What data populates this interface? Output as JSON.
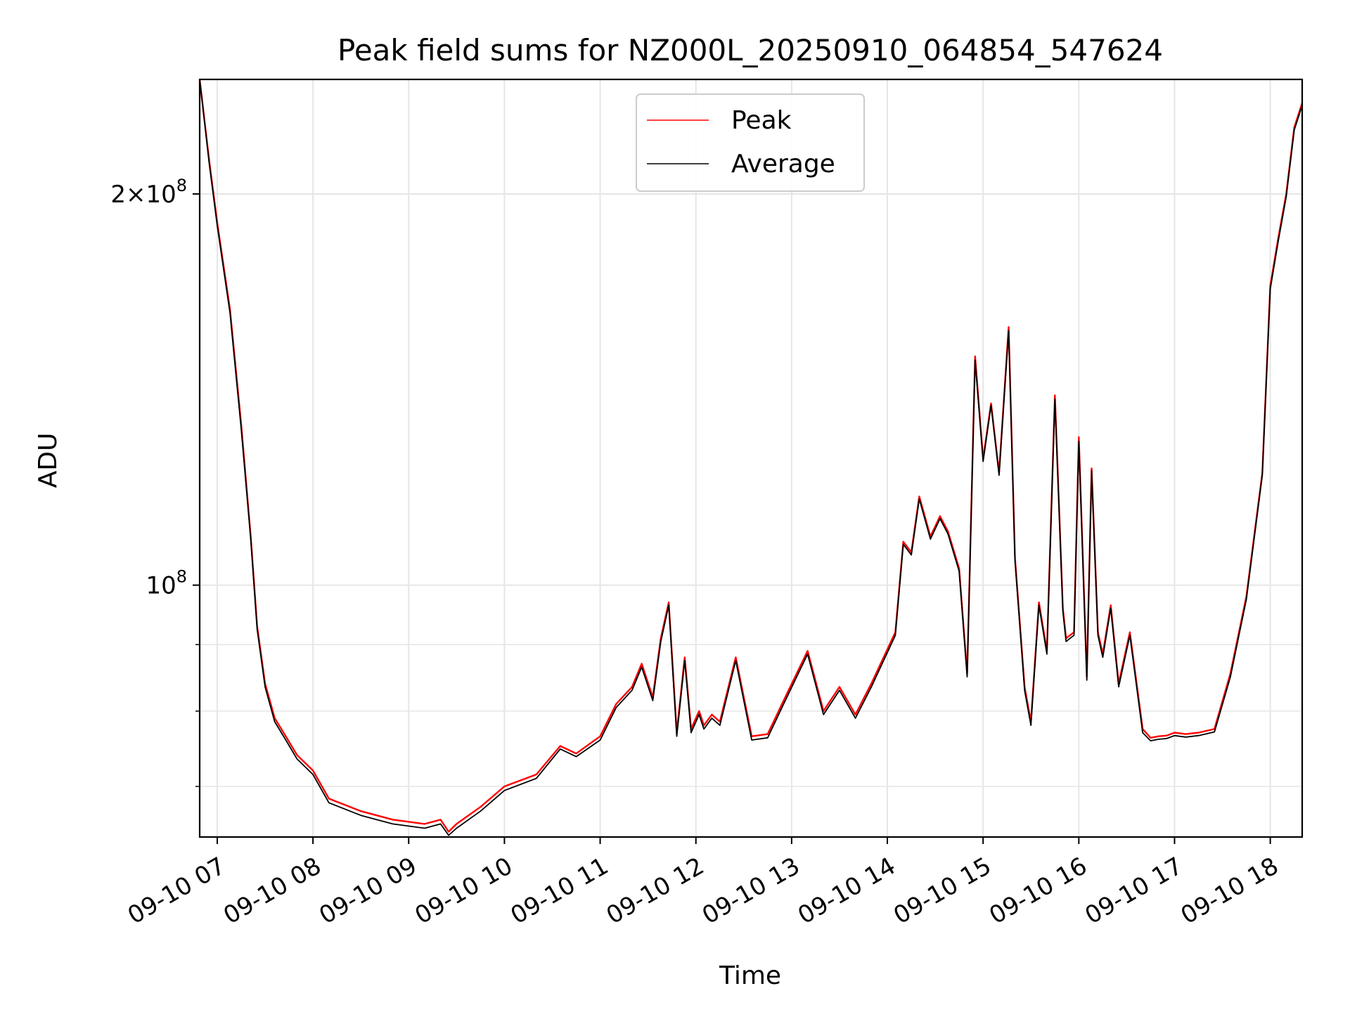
{
  "chart_data": {
    "type": "line",
    "title": "Peak field sums for NZ000L_20250910_064854_547624",
    "xlabel": "Time",
    "ylabel": "ADU",
    "yscale": "log",
    "ylim": [
      64000000,
      245000000
    ],
    "y_ticks": [
      {
        "value": 100000000,
        "mantissa": "",
        "exponent": "8"
      },
      {
        "value": 200000000,
        "mantissa": "2",
        "exponent": "8"
      }
    ],
    "y_minor_ticks": [
      70000000,
      80000000,
      90000000
    ],
    "xlim": [
      "2025-09-10 06:49",
      "2025-09-10 18:20"
    ],
    "x_ticks": [
      "09-10 07",
      "09-10 08",
      "09-10 09",
      "09-10 10",
      "09-10 11",
      "09-10 12",
      "09-10 13",
      "09-10 14",
      "09-10 15",
      "09-10 16",
      "09-10 17",
      "09-10 18"
    ],
    "x_tick_times": [
      "2025-09-10 07:00",
      "2025-09-10 08:00",
      "2025-09-10 09:00",
      "2025-09-10 10:00",
      "2025-09-10 11:00",
      "2025-09-10 12:00",
      "2025-09-10 13:00",
      "2025-09-10 14:00",
      "2025-09-10 15:00",
      "2025-09-10 16:00",
      "2025-09-10 17:00",
      "2025-09-10 18:00"
    ],
    "grid": true,
    "legend_position": "upper center",
    "series": [
      {
        "name": "Peak",
        "color": "#ff0000",
        "x": [
          "2025-09-10 06:49",
          "2025-09-10 06:55",
          "2025-09-10 07:00",
          "2025-09-10 07:08",
          "2025-09-10 07:15",
          "2025-09-10 07:21",
          "2025-09-10 07:25",
          "2025-09-10 07:30",
          "2025-09-10 07:36",
          "2025-09-10 07:43",
          "2025-09-10 07:50",
          "2025-09-10 08:00",
          "2025-09-10 08:10",
          "2025-09-10 08:30",
          "2025-09-10 08:50",
          "2025-09-10 09:10",
          "2025-09-10 09:20",
          "2025-09-10 09:25",
          "2025-09-10 09:30",
          "2025-09-10 09:45",
          "2025-09-10 10:00",
          "2025-09-10 10:20",
          "2025-09-10 10:35",
          "2025-09-10 10:45",
          "2025-09-10 11:00",
          "2025-09-10 11:10",
          "2025-09-10 11:20",
          "2025-09-10 11:26",
          "2025-09-10 11:33",
          "2025-09-10 11:38",
          "2025-09-10 11:43",
          "2025-09-10 11:48",
          "2025-09-10 11:53",
          "2025-09-10 11:57",
          "2025-09-10 12:02",
          "2025-09-10 12:05",
          "2025-09-10 12:10",
          "2025-09-10 12:15",
          "2025-09-10 12:25",
          "2025-09-10 12:35",
          "2025-09-10 12:45",
          "2025-09-10 12:55",
          "2025-09-10 13:10",
          "2025-09-10 13:20",
          "2025-09-10 13:30",
          "2025-09-10 13:40",
          "2025-09-10 13:50",
          "2025-09-10 14:05",
          "2025-09-10 14:10",
          "2025-09-10 14:15",
          "2025-09-10 14:20",
          "2025-09-10 14:27",
          "2025-09-10 14:33",
          "2025-09-10 14:38",
          "2025-09-10 14:45",
          "2025-09-10 14:50",
          "2025-09-10 14:55",
          "2025-09-10 15:00",
          "2025-09-10 15:05",
          "2025-09-10 15:10",
          "2025-09-10 15:16",
          "2025-09-10 15:20",
          "2025-09-10 15:26",
          "2025-09-10 15:30",
          "2025-09-10 15:35",
          "2025-09-10 15:40",
          "2025-09-10 15:45",
          "2025-09-10 15:50",
          "2025-09-10 15:52",
          "2025-09-10 15:57",
          "2025-09-10 16:00",
          "2025-09-10 16:05",
          "2025-09-10 16:08",
          "2025-09-10 16:12",
          "2025-09-10 16:15",
          "2025-09-10 16:20",
          "2025-09-10 16:25",
          "2025-09-10 16:32",
          "2025-09-10 16:40",
          "2025-09-10 16:45",
          "2025-09-10 16:50",
          "2025-09-10 16:55",
          "2025-09-10 17:00",
          "2025-09-10 17:07",
          "2025-09-10 17:15",
          "2025-09-10 17:25",
          "2025-09-10 17:35",
          "2025-09-10 17:45",
          "2025-09-10 17:55",
          "2025-09-10 18:00",
          "2025-09-10 18:05",
          "2025-09-10 18:10",
          "2025-09-10 18:15",
          "2025-09-10 18:20"
        ],
        "values": [
          245000000,
          212000000,
          190000000,
          163000000,
          133000000,
          109000000,
          93000000,
          84000000,
          79000000,
          76500000,
          74000000,
          72000000,
          68500000,
          67000000,
          66000000,
          65500000,
          66000000,
          64600000,
          65500000,
          67500000,
          70000000,
          71500000,
          75200000,
          74200000,
          76500000,
          81000000,
          83500000,
          87000000,
          82000000,
          91000000,
          97000000,
          77000000,
          88000000,
          77500000,
          80000000,
          78000000,
          79500000,
          78500000,
          88000000,
          76500000,
          76800000,
          81500000,
          89000000,
          80000000,
          83500000,
          79500000,
          84000000,
          92000000,
          108000000,
          106000000,
          117000000,
          109000000,
          113000000,
          110000000,
          103000000,
          85500000,
          150000000,
          125000000,
          138000000,
          122000000,
          158000000,
          105000000,
          83500000,
          78500000,
          97000000,
          89000000,
          140000000,
          96000000,
          91000000,
          92000000,
          130000000,
          85000000,
          123000000,
          92000000,
          88500000,
          96500000,
          84000000,
          92000000,
          77500000,
          76300000,
          76500000,
          76600000,
          77000000,
          76800000,
          77000000,
          77500000,
          85500000,
          98000000,
          122000000,
          170000000,
          185000000,
          200000000,
          225000000,
          235000000
        ]
      },
      {
        "name": "Average",
        "color": "#000000",
        "x": [
          "2025-09-10 06:49",
          "2025-09-10 06:55",
          "2025-09-10 07:00",
          "2025-09-10 07:08",
          "2025-09-10 07:15",
          "2025-09-10 07:21",
          "2025-09-10 07:25",
          "2025-09-10 07:30",
          "2025-09-10 07:36",
          "2025-09-10 07:43",
          "2025-09-10 07:50",
          "2025-09-10 08:00",
          "2025-09-10 08:10",
          "2025-09-10 08:30",
          "2025-09-10 08:50",
          "2025-09-10 09:10",
          "2025-09-10 09:20",
          "2025-09-10 09:25",
          "2025-09-10 09:30",
          "2025-09-10 09:45",
          "2025-09-10 10:00",
          "2025-09-10 10:20",
          "2025-09-10 10:35",
          "2025-09-10 10:45",
          "2025-09-10 11:00",
          "2025-09-10 11:10",
          "2025-09-10 11:20",
          "2025-09-10 11:26",
          "2025-09-10 11:33",
          "2025-09-10 11:38",
          "2025-09-10 11:43",
          "2025-09-10 11:48",
          "2025-09-10 11:53",
          "2025-09-10 11:57",
          "2025-09-10 12:02",
          "2025-09-10 12:05",
          "2025-09-10 12:10",
          "2025-09-10 12:15",
          "2025-09-10 12:25",
          "2025-09-10 12:35",
          "2025-09-10 12:45",
          "2025-09-10 12:55",
          "2025-09-10 13:10",
          "2025-09-10 13:20",
          "2025-09-10 13:30",
          "2025-09-10 13:40",
          "2025-09-10 13:50",
          "2025-09-10 14:05",
          "2025-09-10 14:10",
          "2025-09-10 14:15",
          "2025-09-10 14:20",
          "2025-09-10 14:27",
          "2025-09-10 14:33",
          "2025-09-10 14:38",
          "2025-09-10 14:45",
          "2025-09-10 14:50",
          "2025-09-10 14:55",
          "2025-09-10 15:00",
          "2025-09-10 15:05",
          "2025-09-10 15:10",
          "2025-09-10 15:16",
          "2025-09-10 15:20",
          "2025-09-10 15:26",
          "2025-09-10 15:30",
          "2025-09-10 15:35",
          "2025-09-10 15:40",
          "2025-09-10 15:45",
          "2025-09-10 15:50",
          "2025-09-10 15:52",
          "2025-09-10 15:57",
          "2025-09-10 16:00",
          "2025-09-10 16:05",
          "2025-09-10 16:08",
          "2025-09-10 16:12",
          "2025-09-10 16:15",
          "2025-09-10 16:20",
          "2025-09-10 16:25",
          "2025-09-10 16:32",
          "2025-09-10 16:40",
          "2025-09-10 16:45",
          "2025-09-10 16:50",
          "2025-09-10 16:55",
          "2025-09-10 17:00",
          "2025-09-10 17:07",
          "2025-09-10 17:15",
          "2025-09-10 17:25",
          "2025-09-10 17:35",
          "2025-09-10 17:45",
          "2025-09-10 17:55",
          "2025-09-10 18:00",
          "2025-09-10 18:05",
          "2025-09-10 18:10",
          "2025-09-10 18:15",
          "2025-09-10 18:20"
        ],
        "values": [
          245000000,
          211000000,
          189000000,
          162000000,
          132000000,
          108500000,
          92500000,
          83500000,
          78500000,
          76000000,
          73500000,
          71500000,
          68000000,
          66500000,
          65500000,
          65000000,
          65500000,
          64200000,
          65000000,
          67000000,
          69500000,
          71000000,
          74800000,
          73800000,
          76000000,
          80500000,
          83000000,
          86500000,
          81500000,
          90500000,
          96500000,
          76500000,
          87500000,
          77000000,
          79500000,
          77500000,
          79000000,
          78000000,
          87500000,
          76000000,
          76300000,
          81000000,
          88500000,
          79500000,
          83000000,
          79000000,
          83500000,
          91500000,
          107500000,
          105500000,
          116500000,
          108500000,
          112500000,
          109500000,
          102500000,
          85000000,
          149000000,
          124500000,
          137500000,
          121500000,
          157000000,
          104500000,
          83000000,
          78000000,
          96500000,
          88500000,
          139000000,
          95500000,
          90500000,
          91500000,
          129000000,
          84500000,
          122500000,
          91500000,
          88000000,
          96000000,
          83500000,
          91500000,
          77000000,
          75900000,
          76100000,
          76200000,
          76600000,
          76400000,
          76600000,
          77100000,
          85000000,
          97500000,
          121500000,
          169000000,
          184000000,
          199000000,
          224000000,
          234000000
        ]
      }
    ]
  }
}
